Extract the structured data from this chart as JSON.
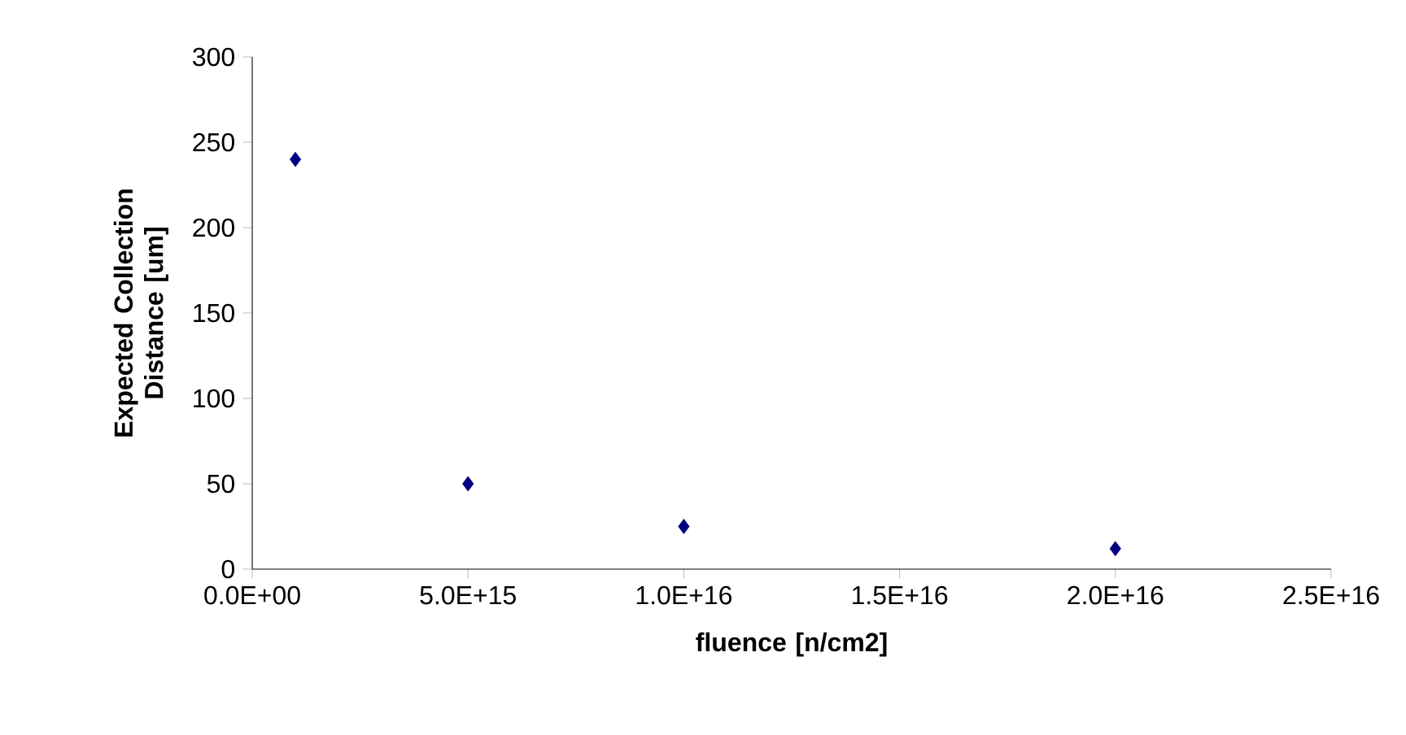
{
  "chart_data": {
    "type": "scatter",
    "xlabel": "fluence [n/cm2]",
    "ylabel": "Expected Collection Distance [um]",
    "x": [
      1000000000000000.0,
      5000000000000000.0,
      1e+16,
      2e+16
    ],
    "values": [
      240,
      50,
      25,
      12
    ],
    "color": "#000080",
    "marker": "diamond",
    "xlim": [
      0,
      2.5e+16
    ],
    "xticks": [
      {
        "value": 0,
        "label": "0.0E+00"
      },
      {
        "value": 5000000000000000.0,
        "label": "5.0E+15"
      },
      {
        "value": 1e+16,
        "label": "1.0E+16"
      },
      {
        "value": 1.5e+16,
        "label": "1.5E+16"
      },
      {
        "value": 2e+16,
        "label": "2.0E+16"
      },
      {
        "value": 2.5e+16,
        "label": "2.5E+16"
      }
    ],
    "ylim": [
      0,
      300
    ],
    "yticks": [
      0,
      50,
      100,
      150,
      200,
      250,
      300
    ]
  }
}
